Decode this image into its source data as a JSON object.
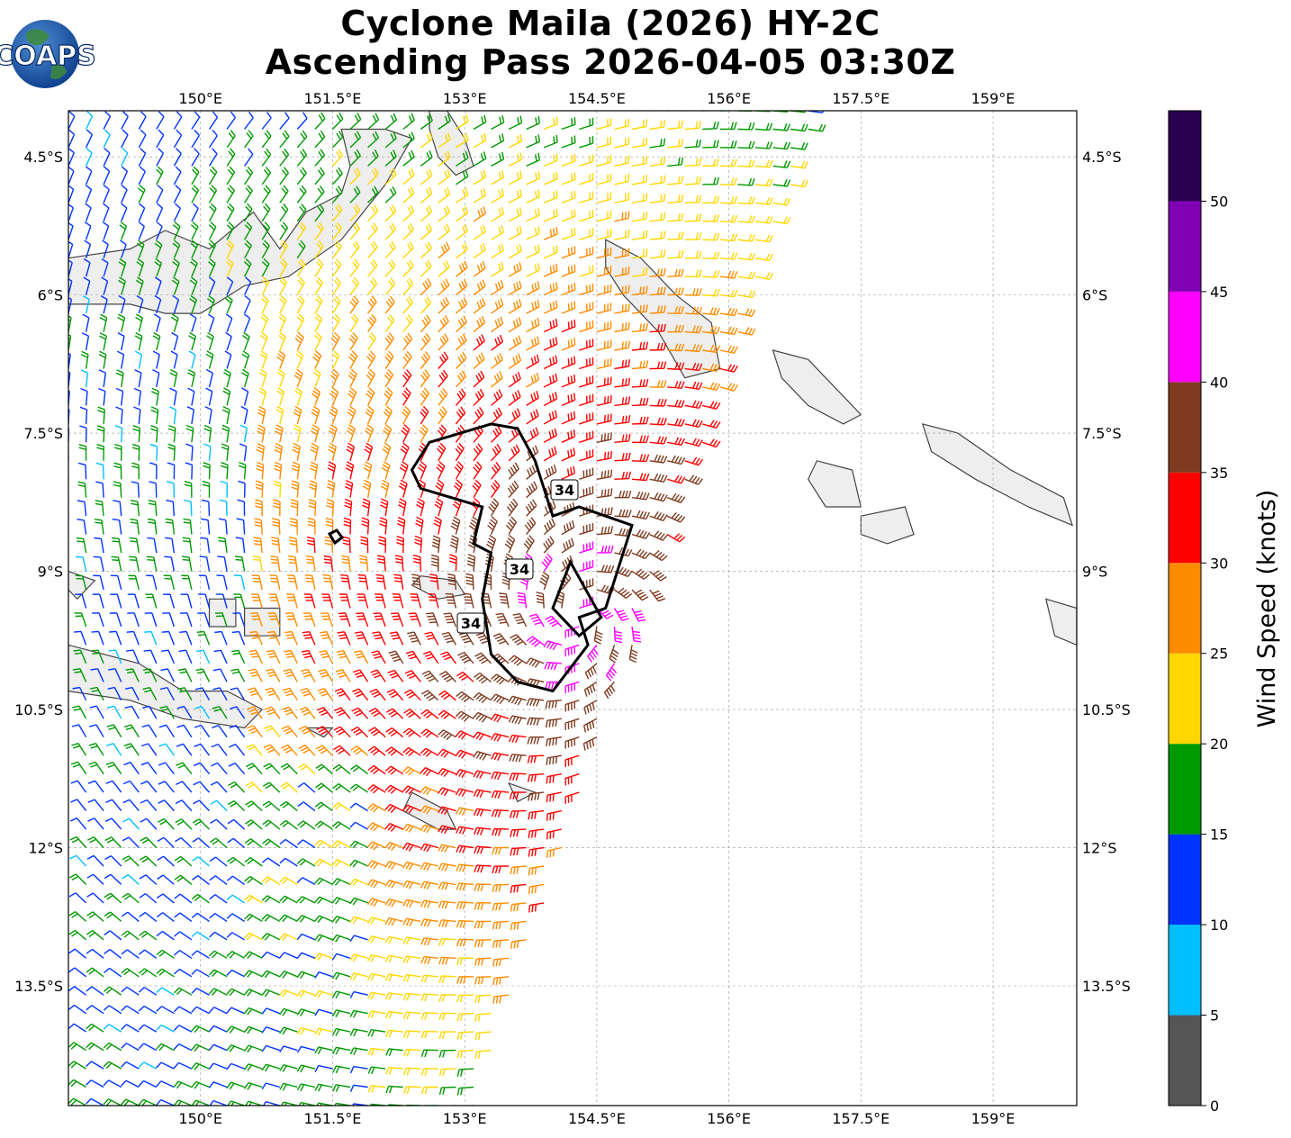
{
  "title": {
    "line1": "Cyclone Maila (2026) HY-2C",
    "line2": "Ascending Pass 2026-04-05 03:30Z"
  },
  "logo": {
    "text": "COAPS"
  },
  "map": {
    "lon_range": [
      148.5,
      159.95
    ],
    "lat_range": [
      -14.8,
      -4.0
    ],
    "lon_ticks": [
      "150°E",
      "151.5°E",
      "153°E",
      "154.5°E",
      "156°E",
      "157.5°E",
      "159°E"
    ],
    "lat_ticks": [
      "4.5°S",
      "6°S",
      "7.5°S",
      "9°S",
      "10.5°S",
      "12°S",
      "13.5°S"
    ],
    "gridlines": true,
    "land_color": "#eeeeee",
    "coast_color": "#444444"
  },
  "contour": {
    "value_knots": 34,
    "labels": [
      "34",
      "34",
      "34"
    ],
    "color": "#000000"
  },
  "colorbar": {
    "label": "Wind Speed (knots)",
    "ticks": [
      "0",
      "5",
      "10",
      "15",
      "20",
      "25",
      "30",
      "35",
      "40",
      "45",
      "50"
    ],
    "bins": [
      {
        "min": 0,
        "max": 5,
        "color": "#555555"
      },
      {
        "min": 5,
        "max": 10,
        "color": "#00bfff"
      },
      {
        "min": 10,
        "max": 15,
        "color": "#0033ff"
      },
      {
        "min": 15,
        "max": 20,
        "color": "#009900"
      },
      {
        "min": 20,
        "max": 25,
        "color": "#ffd700"
      },
      {
        "min": 25,
        "max": 30,
        "color": "#ff8c00"
      },
      {
        "min": 30,
        "max": 35,
        "color": "#ff0000"
      },
      {
        "min": 35,
        "max": 40,
        "color": "#7f3b20"
      },
      {
        "min": 40,
        "max": 45,
        "color": "#ff00ff"
      },
      {
        "min": 45,
        "max": 50,
        "color": "#8000b4"
      },
      {
        "min": 50,
        "max": 55,
        "color": "#2a0050"
      }
    ]
  },
  "storm_center": {
    "lon": 154.3,
    "lat": -9.5
  }
}
